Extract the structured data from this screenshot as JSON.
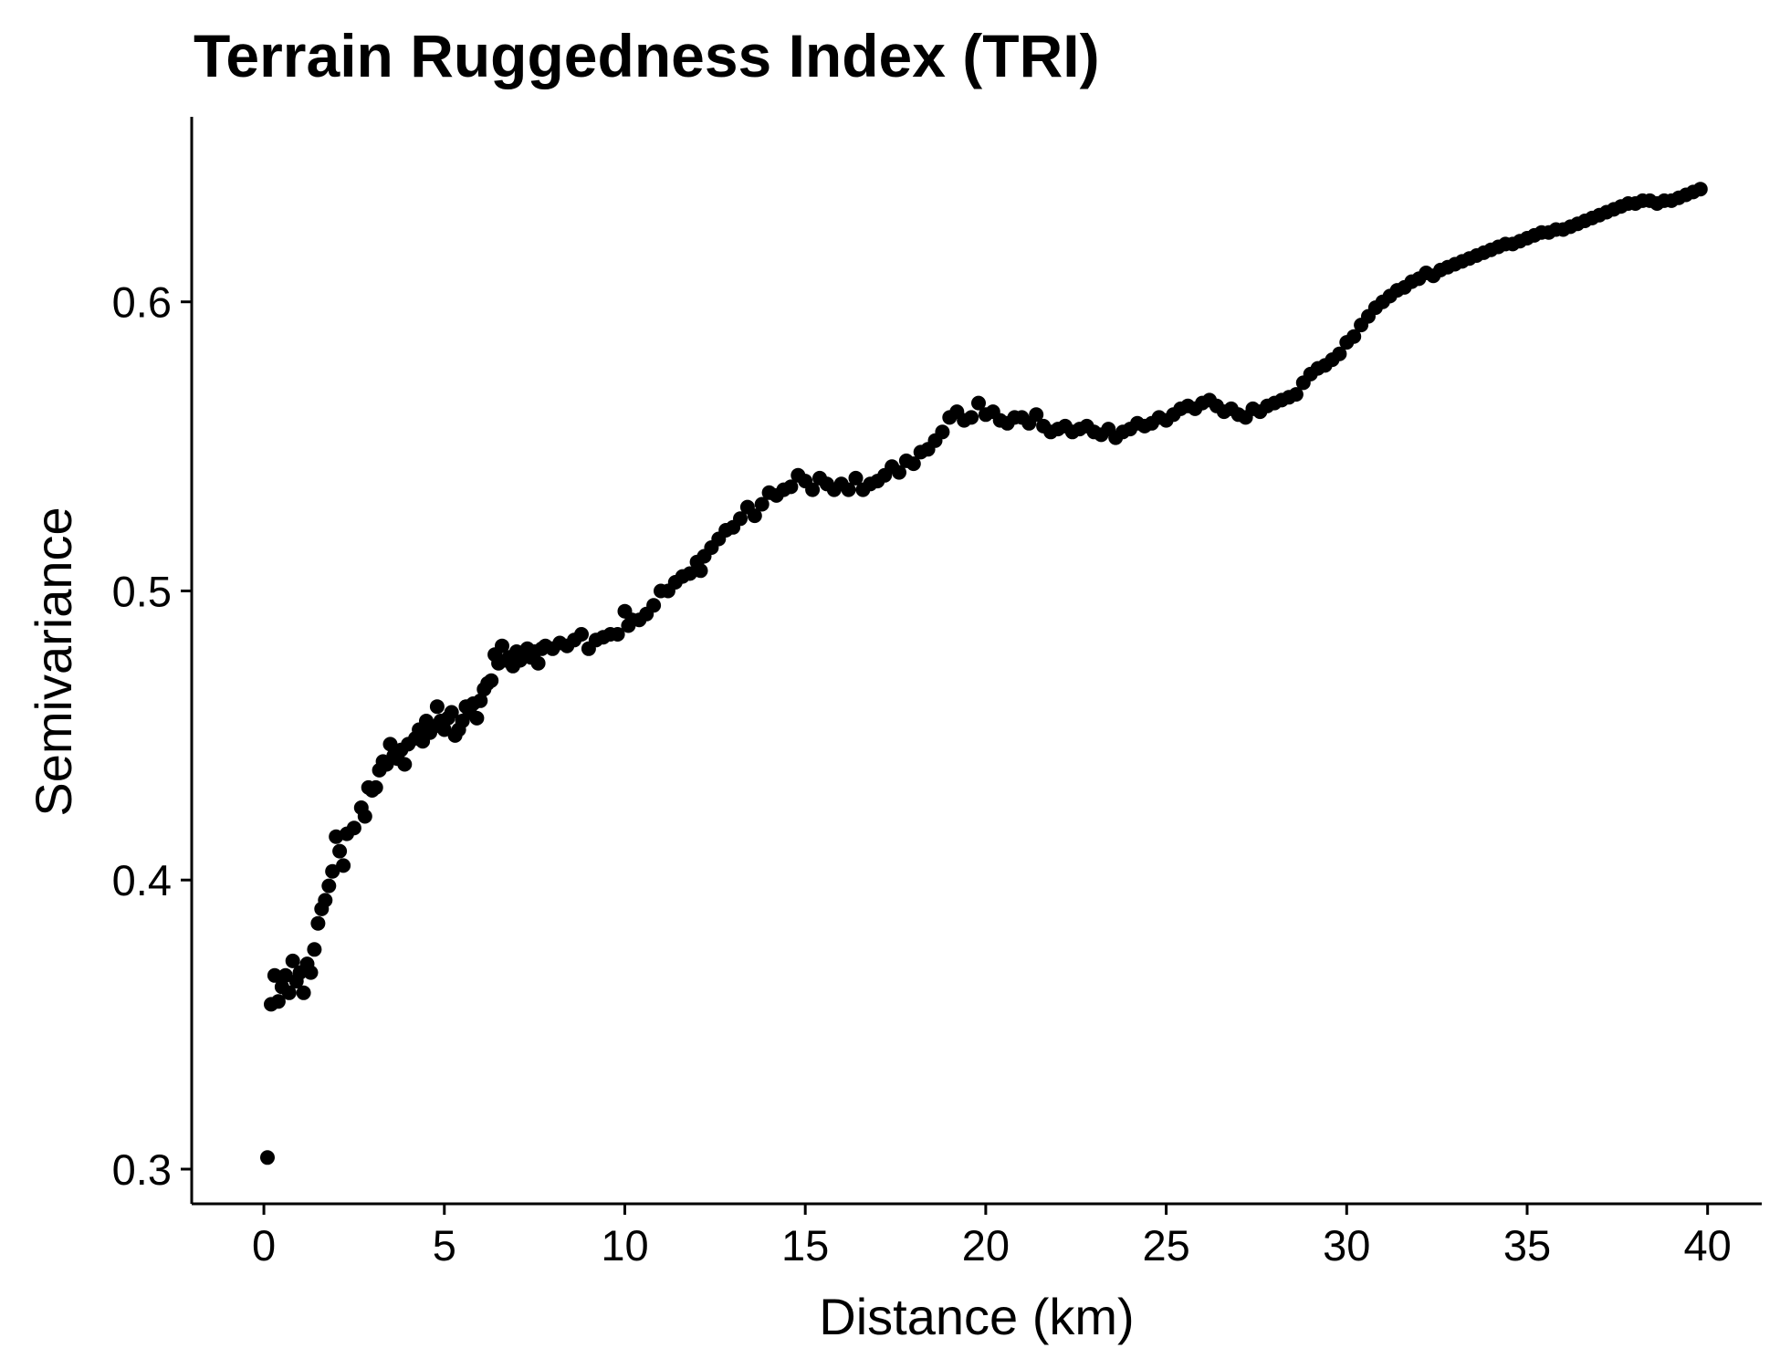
{
  "chart_data": {
    "type": "scatter",
    "title": "Terrain Ruggedness Index (TRI)",
    "xlabel": "Distance (km)",
    "ylabel": "Semivariance",
    "xlim": [
      -2,
      41.5
    ],
    "ylim": [
      0.288,
      0.664
    ],
    "xticks": [
      0,
      5,
      10,
      15,
      20,
      25,
      30,
      35,
      40
    ],
    "xtick_labels": [
      "0",
      "5",
      "10",
      "15",
      "20",
      "25",
      "30",
      "35",
      "40"
    ],
    "yticks": [
      0.3,
      0.4,
      0.5,
      0.6
    ],
    "ytick_labels": [
      "0.3",
      "0.4",
      "0.5",
      "0.6"
    ],
    "grid": false,
    "legend": "none",
    "point_color": "#000000",
    "series": [
      {
        "values_note": "",
        "points": [
          [
            0.1,
            0.304
          ],
          [
            0.2,
            0.357
          ],
          [
            0.3,
            0.367
          ],
          [
            0.4,
            0.358
          ],
          [
            0.5,
            0.363
          ],
          [
            0.6,
            0.367
          ],
          [
            0.7,
            0.361
          ],
          [
            0.8,
            0.372
          ],
          [
            0.9,
            0.365
          ],
          [
            1.0,
            0.368
          ],
          [
            1.1,
            0.361
          ],
          [
            1.2,
            0.371
          ],
          [
            1.3,
            0.368
          ],
          [
            1.4,
            0.376
          ],
          [
            1.5,
            0.385
          ],
          [
            1.6,
            0.39
          ],
          [
            1.7,
            0.393
          ],
          [
            1.8,
            0.398
          ],
          [
            1.9,
            0.403
          ],
          [
            2.0,
            0.415
          ],
          [
            2.1,
            0.41
          ],
          [
            2.2,
            0.405
          ],
          [
            2.3,
            0.416
          ],
          [
            2.5,
            0.418
          ],
          [
            2.7,
            0.425
          ],
          [
            2.8,
            0.422
          ],
          [
            2.9,
            0.432
          ],
          [
            3.0,
            0.431
          ],
          [
            3.1,
            0.432
          ],
          [
            3.2,
            0.438
          ],
          [
            3.3,
            0.441
          ],
          [
            3.4,
            0.44
          ],
          [
            3.5,
            0.447
          ],
          [
            3.6,
            0.443
          ],
          [
            3.7,
            0.442
          ],
          [
            3.8,
            0.445
          ],
          [
            3.9,
            0.44
          ],
          [
            4.0,
            0.447
          ],
          [
            4.2,
            0.449
          ],
          [
            4.3,
            0.452
          ],
          [
            4.4,
            0.448
          ],
          [
            4.5,
            0.455
          ],
          [
            4.6,
            0.451
          ],
          [
            4.7,
            0.453
          ],
          [
            4.8,
            0.46
          ],
          [
            4.9,
            0.455
          ],
          [
            5.0,
            0.452
          ],
          [
            5.1,
            0.456
          ],
          [
            5.2,
            0.458
          ],
          [
            5.3,
            0.45
          ],
          [
            5.4,
            0.452
          ],
          [
            5.5,
            0.455
          ],
          [
            5.6,
            0.46
          ],
          [
            5.7,
            0.458
          ],
          [
            5.8,
            0.461
          ],
          [
            5.9,
            0.456
          ],
          [
            6.0,
            0.462
          ],
          [
            6.1,
            0.466
          ],
          [
            6.2,
            0.468
          ],
          [
            6.3,
            0.469
          ],
          [
            6.4,
            0.478
          ],
          [
            6.5,
            0.475
          ],
          [
            6.6,
            0.481
          ],
          [
            6.7,
            0.476
          ],
          [
            6.8,
            0.477
          ],
          [
            6.9,
            0.474
          ],
          [
            7.0,
            0.479
          ],
          [
            7.1,
            0.476
          ],
          [
            7.2,
            0.478
          ],
          [
            7.3,
            0.48
          ],
          [
            7.4,
            0.477
          ],
          [
            7.5,
            0.479
          ],
          [
            7.6,
            0.475
          ],
          [
            7.7,
            0.48
          ],
          [
            7.8,
            0.481
          ],
          [
            8.0,
            0.48
          ],
          [
            8.2,
            0.482
          ],
          [
            8.4,
            0.481
          ],
          [
            8.6,
            0.483
          ],
          [
            8.8,
            0.485
          ],
          [
            9.0,
            0.48
          ],
          [
            9.2,
            0.483
          ],
          [
            9.4,
            0.484
          ],
          [
            9.6,
            0.485
          ],
          [
            9.8,
            0.485
          ],
          [
            10.0,
            0.493
          ],
          [
            10.1,
            0.488
          ],
          [
            10.2,
            0.49
          ],
          [
            10.4,
            0.49
          ],
          [
            10.6,
            0.492
          ],
          [
            10.8,
            0.495
          ],
          [
            11.0,
            0.5
          ],
          [
            11.2,
            0.5
          ],
          [
            11.4,
            0.503
          ],
          [
            11.6,
            0.505
          ],
          [
            11.8,
            0.506
          ],
          [
            12.0,
            0.51
          ],
          [
            12.1,
            0.507
          ],
          [
            12.2,
            0.512
          ],
          [
            12.4,
            0.515
          ],
          [
            12.6,
            0.518
          ],
          [
            12.8,
            0.521
          ],
          [
            13.0,
            0.522
          ],
          [
            13.2,
            0.525
          ],
          [
            13.4,
            0.529
          ],
          [
            13.6,
            0.526
          ],
          [
            13.8,
            0.53
          ],
          [
            14.0,
            0.534
          ],
          [
            14.2,
            0.533
          ],
          [
            14.4,
            0.535
          ],
          [
            14.6,
            0.536
          ],
          [
            14.8,
            0.54
          ],
          [
            15.0,
            0.538
          ],
          [
            15.2,
            0.535
          ],
          [
            15.4,
            0.539
          ],
          [
            15.6,
            0.537
          ],
          [
            15.8,
            0.535
          ],
          [
            16.0,
            0.537
          ],
          [
            16.2,
            0.535
          ],
          [
            16.4,
            0.539
          ],
          [
            16.6,
            0.535
          ],
          [
            16.8,
            0.537
          ],
          [
            17.0,
            0.538
          ],
          [
            17.2,
            0.54
          ],
          [
            17.4,
            0.543
          ],
          [
            17.6,
            0.541
          ],
          [
            17.8,
            0.545
          ],
          [
            18.0,
            0.544
          ],
          [
            18.2,
            0.548
          ],
          [
            18.4,
            0.549
          ],
          [
            18.6,
            0.552
          ],
          [
            18.8,
            0.555
          ],
          [
            19.0,
            0.56
          ],
          [
            19.2,
            0.562
          ],
          [
            19.4,
            0.559
          ],
          [
            19.6,
            0.56
          ],
          [
            19.8,
            0.565
          ],
          [
            20.0,
            0.561
          ],
          [
            20.2,
            0.562
          ],
          [
            20.4,
            0.559
          ],
          [
            20.6,
            0.558
          ],
          [
            20.8,
            0.56
          ],
          [
            21.0,
            0.56
          ],
          [
            21.2,
            0.558
          ],
          [
            21.4,
            0.561
          ],
          [
            21.6,
            0.557
          ],
          [
            21.8,
            0.555
          ],
          [
            22.0,
            0.556
          ],
          [
            22.2,
            0.557
          ],
          [
            22.4,
            0.555
          ],
          [
            22.6,
            0.556
          ],
          [
            22.8,
            0.557
          ],
          [
            23.0,
            0.555
          ],
          [
            23.2,
            0.554
          ],
          [
            23.4,
            0.556
          ],
          [
            23.6,
            0.553
          ],
          [
            23.8,
            0.555
          ],
          [
            24.0,
            0.556
          ],
          [
            24.2,
            0.558
          ],
          [
            24.4,
            0.557
          ],
          [
            24.6,
            0.558
          ],
          [
            24.8,
            0.56
          ],
          [
            25.0,
            0.559
          ],
          [
            25.2,
            0.561
          ],
          [
            25.4,
            0.563
          ],
          [
            25.6,
            0.564
          ],
          [
            25.8,
            0.563
          ],
          [
            26.0,
            0.565
          ],
          [
            26.2,
            0.566
          ],
          [
            26.4,
            0.564
          ],
          [
            26.6,
            0.562
          ],
          [
            26.8,
            0.563
          ],
          [
            27.0,
            0.561
          ],
          [
            27.2,
            0.56
          ],
          [
            27.4,
            0.563
          ],
          [
            27.6,
            0.562
          ],
          [
            27.8,
            0.564
          ],
          [
            28.0,
            0.565
          ],
          [
            28.2,
            0.566
          ],
          [
            28.4,
            0.567
          ],
          [
            28.6,
            0.568
          ],
          [
            28.8,
            0.572
          ],
          [
            29.0,
            0.575
          ],
          [
            29.2,
            0.577
          ],
          [
            29.4,
            0.578
          ],
          [
            29.6,
            0.58
          ],
          [
            29.8,
            0.582
          ],
          [
            30.0,
            0.586
          ],
          [
            30.2,
            0.588
          ],
          [
            30.4,
            0.592
          ],
          [
            30.6,
            0.595
          ],
          [
            30.8,
            0.598
          ],
          [
            31.0,
            0.6
          ],
          [
            31.2,
            0.602
          ],
          [
            31.4,
            0.604
          ],
          [
            31.6,
            0.605
          ],
          [
            31.8,
            0.607
          ],
          [
            32.0,
            0.608
          ],
          [
            32.2,
            0.61
          ],
          [
            32.4,
            0.609
          ],
          [
            32.6,
            0.611
          ],
          [
            32.8,
            0.612
          ],
          [
            33.0,
            0.613
          ],
          [
            33.2,
            0.614
          ],
          [
            33.4,
            0.615
          ],
          [
            33.6,
            0.616
          ],
          [
            33.8,
            0.617
          ],
          [
            34.0,
            0.618
          ],
          [
            34.2,
            0.619
          ],
          [
            34.4,
            0.62
          ],
          [
            34.6,
            0.62
          ],
          [
            34.8,
            0.621
          ],
          [
            35.0,
            0.622
          ],
          [
            35.2,
            0.623
          ],
          [
            35.4,
            0.624
          ],
          [
            35.6,
            0.624
          ],
          [
            35.8,
            0.625
          ],
          [
            36.0,
            0.625
          ],
          [
            36.2,
            0.626
          ],
          [
            36.4,
            0.627
          ],
          [
            36.6,
            0.628
          ],
          [
            36.8,
            0.629
          ],
          [
            37.0,
            0.63
          ],
          [
            37.2,
            0.631
          ],
          [
            37.4,
            0.632
          ],
          [
            37.6,
            0.633
          ],
          [
            37.8,
            0.634
          ],
          [
            38.0,
            0.634
          ],
          [
            38.2,
            0.635
          ],
          [
            38.4,
            0.635
          ],
          [
            38.6,
            0.634
          ],
          [
            38.8,
            0.635
          ],
          [
            39.0,
            0.635
          ],
          [
            39.2,
            0.636
          ],
          [
            39.4,
            0.637
          ],
          [
            39.6,
            0.638
          ],
          [
            39.8,
            0.639
          ]
        ]
      }
    ]
  }
}
